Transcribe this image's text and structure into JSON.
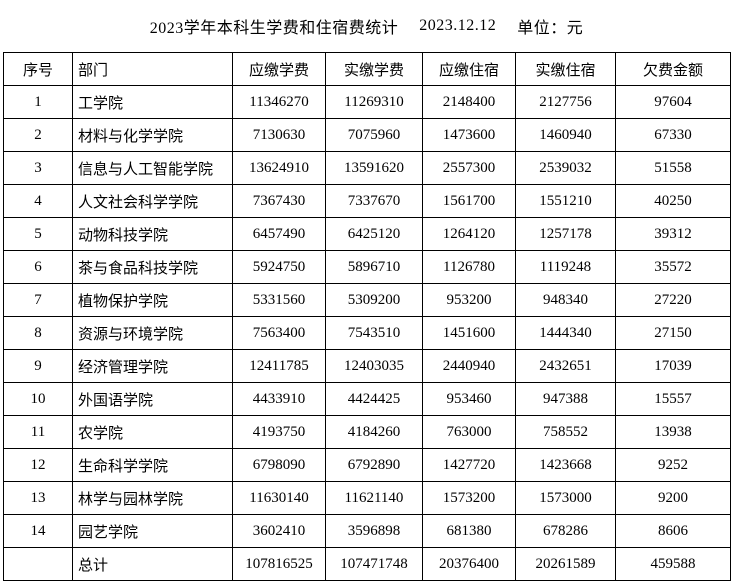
{
  "title": {
    "main": "2023学年本科生学费和住宿费统计",
    "date": "2023.12.12",
    "unit": "单位：元"
  },
  "table": {
    "columns": [
      "序号",
      "部门",
      "应缴学费",
      "实缴学费",
      "应缴住宿",
      "实缴住宿",
      "欠费金额"
    ],
    "rows": [
      [
        "1",
        "工学院",
        "11346270",
        "11269310",
        "2148400",
        "2127756",
        "97604"
      ],
      [
        "2",
        "材料与化学学院",
        "7130630",
        "7075960",
        "1473600",
        "1460940",
        "67330"
      ],
      [
        "3",
        "信息与人工智能学院",
        "13624910",
        "13591620",
        "2557300",
        "2539032",
        "51558"
      ],
      [
        "4",
        "人文社会科学学院",
        "7367430",
        "7337670",
        "1561700",
        "1551210",
        "40250"
      ],
      [
        "5",
        "动物科技学院",
        "6457490",
        "6425120",
        "1264120",
        "1257178",
        "39312"
      ],
      [
        "6",
        "茶与食品科技学院",
        "5924750",
        "5896710",
        "1126780",
        "1119248",
        "35572"
      ],
      [
        "7",
        "植物保护学院",
        "5331560",
        "5309200",
        "953200",
        "948340",
        "27220"
      ],
      [
        "8",
        "资源与环境学院",
        "7563400",
        "7543510",
        "1451600",
        "1444340",
        "27150"
      ],
      [
        "9",
        "经济管理学院",
        "12411785",
        "12403035",
        "2440940",
        "2432651",
        "17039"
      ],
      [
        "10",
        "外国语学院",
        "4433910",
        "4424425",
        "953460",
        "947388",
        "15557"
      ],
      [
        "11",
        "农学院",
        "4193750",
        "4184260",
        "763000",
        "758552",
        "13938"
      ],
      [
        "12",
        "生命科学学院",
        "6798090",
        "6792890",
        "1427720",
        "1423668",
        "9252"
      ],
      [
        "13",
        "林学与园林学院",
        "11630140",
        "11621140",
        "1573200",
        "1573000",
        "9200"
      ],
      [
        "14",
        "园艺学院",
        "3602410",
        "3596898",
        "681380",
        "678286",
        "8606"
      ]
    ],
    "total_row": [
      "",
      "总计",
      "107816525",
      "107471748",
      "20376400",
      "20261589",
      "459588"
    ]
  }
}
